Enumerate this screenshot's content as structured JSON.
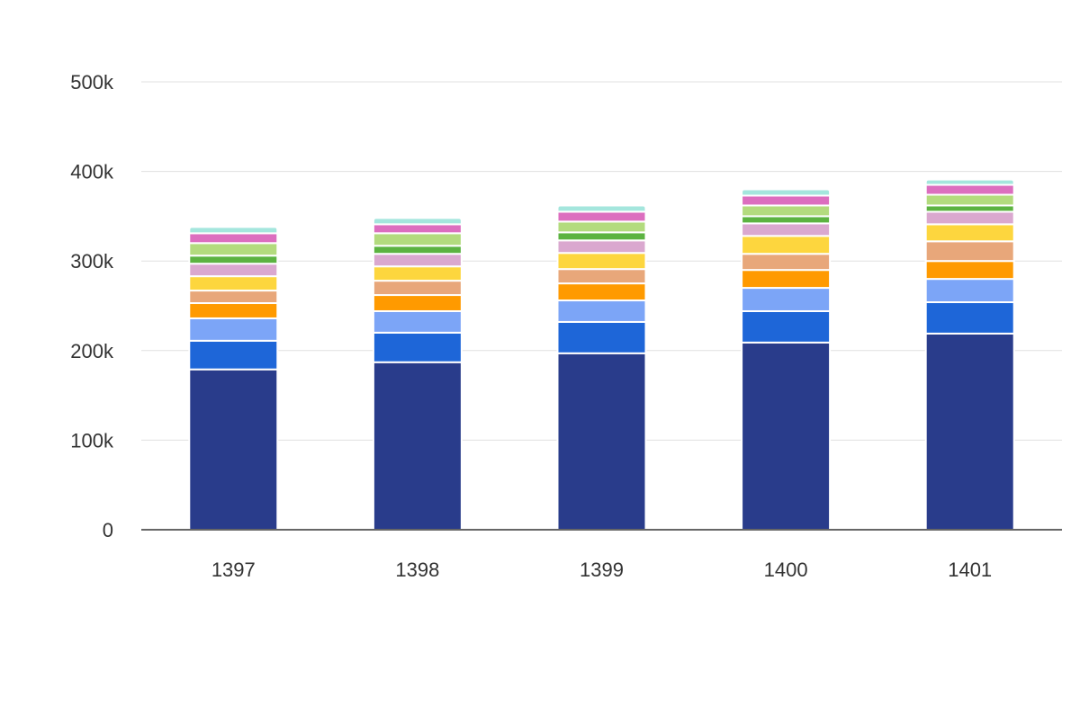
{
  "chart_data": {
    "type": "bar",
    "stacked": true,
    "categories": [
      "1397",
      "1398",
      "1399",
      "1400",
      "1401"
    ],
    "ylim": [
      0,
      500000
    ],
    "y_ticks": [
      {
        "value": 0,
        "label": "0"
      },
      {
        "value": 100000,
        "label": "100k"
      },
      {
        "value": 200000,
        "label": "200k"
      },
      {
        "value": 300000,
        "label": "300k"
      },
      {
        "value": 400000,
        "label": "400k"
      },
      {
        "value": 500000,
        "label": "500k"
      }
    ],
    "grid": true,
    "legend": "none",
    "title": "",
    "xlabel": "",
    "ylabel": "",
    "series": [
      {
        "color": "#293c8b",
        "values": [
          179000,
          187000,
          197000,
          209000,
          219000
        ]
      },
      {
        "color": "#1e66d8",
        "values": [
          32000,
          33000,
          35000,
          35000,
          35000
        ]
      },
      {
        "color": "#7ca5f7",
        "values": [
          25000,
          24000,
          24000,
          26000,
          26000
        ]
      },
      {
        "color": "#ff9a00",
        "values": [
          17000,
          18000,
          19000,
          20000,
          20000
        ]
      },
      {
        "color": "#e8a77a",
        "values": [
          14000,
          16000,
          16000,
          18000,
          22000
        ]
      },
      {
        "color": "#fdd63e",
        "values": [
          16000,
          16000,
          18000,
          20000,
          19000
        ]
      },
      {
        "color": "#daa8cf",
        "values": [
          14000,
          14000,
          14000,
          14000,
          14000
        ]
      },
      {
        "color": "#5cb341",
        "values": [
          9000,
          9000,
          9000,
          8000,
          7000
        ]
      },
      {
        "color": "#b3db7e",
        "values": [
          14000,
          14000,
          12000,
          12000,
          12000
        ]
      },
      {
        "color": "#dc6ebf",
        "values": [
          11000,
          10000,
          11000,
          11000,
          11000
        ]
      },
      {
        "color": "#a4e6dd",
        "values": [
          7000,
          7000,
          7000,
          7000,
          6000
        ]
      }
    ]
  }
}
